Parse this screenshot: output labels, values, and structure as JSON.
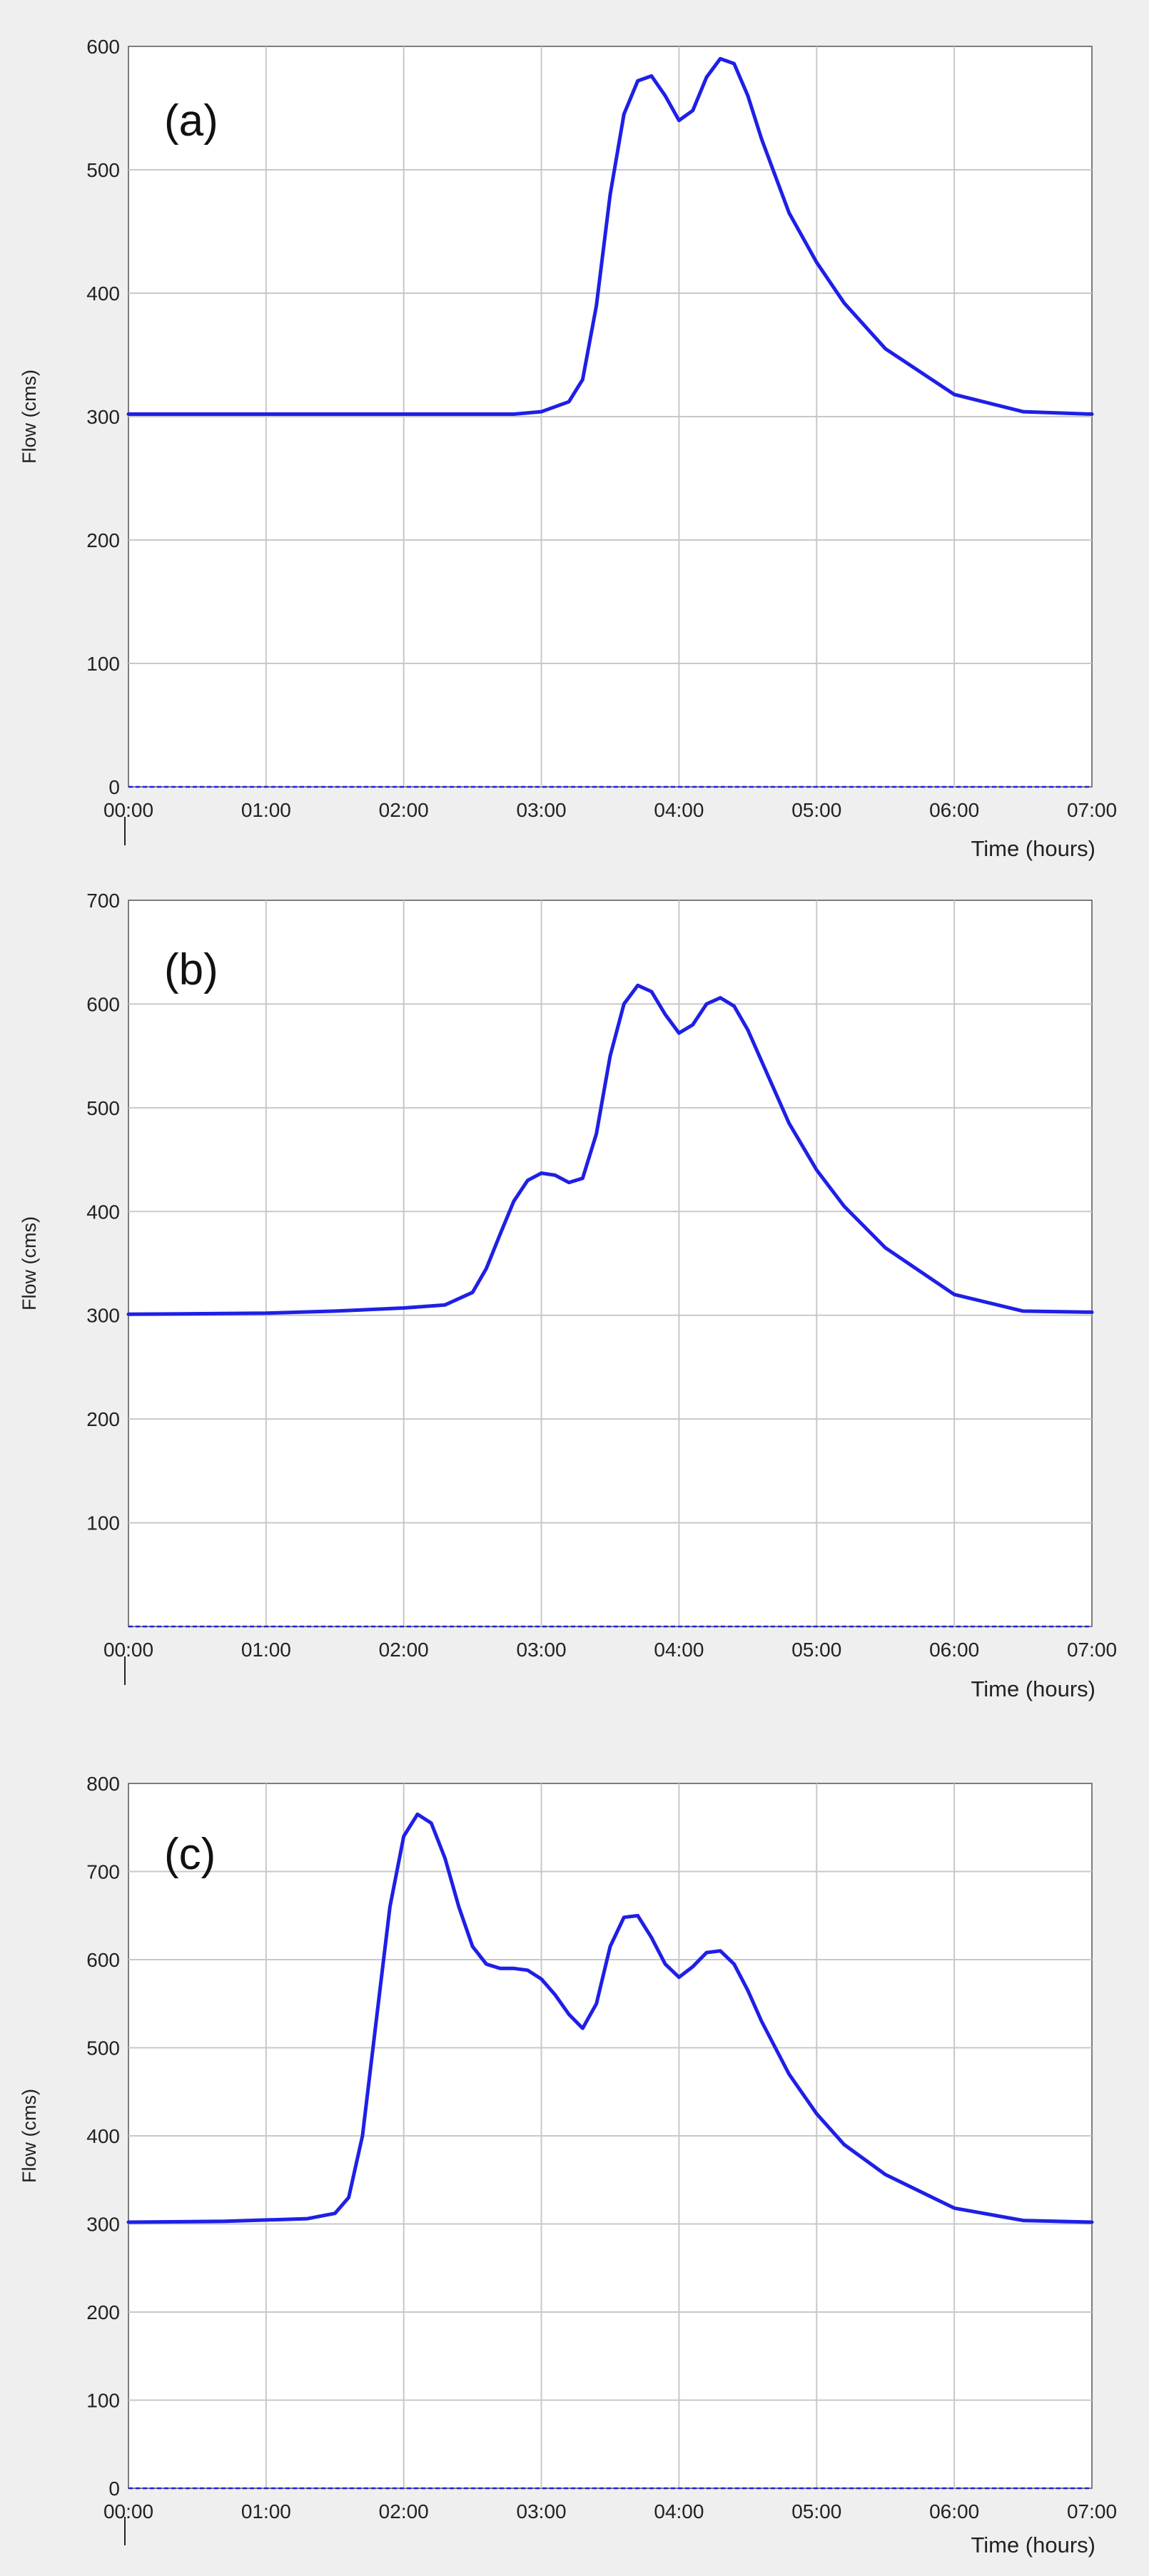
{
  "colors": {
    "series": "#1f1fe6",
    "grid": "#c8c8c8",
    "panel_bg": "#efefef"
  },
  "chart_data": [
    {
      "type": "line",
      "panel_label": "(a)",
      "ylabel": "Flow (cms)",
      "xlabel": "Time (hours)",
      "xlim": [
        0,
        7
      ],
      "ylim": [
        0,
        600
      ],
      "x_tick_labels": [
        "00:00",
        "01:00",
        "02:00",
        "03:00",
        "04:00",
        "05:00",
        "06:00",
        "07:00"
      ],
      "y_tick_labels": [
        "0",
        "100",
        "200",
        "300",
        "400",
        "500",
        "600"
      ],
      "grid": true,
      "series": [
        {
          "x": [
            0,
            1,
            2,
            2.8,
            3.0,
            3.2,
            3.3,
            3.4,
            3.5,
            3.6,
            3.7,
            3.8,
            3.9,
            4.0,
            4.1,
            4.2,
            4.3,
            4.4,
            4.5,
            4.6,
            4.8,
            5.0,
            5.2,
            5.5,
            6.0,
            6.5,
            7.0
          ],
          "y": [
            302,
            302,
            302,
            302,
            304,
            312,
            330,
            390,
            480,
            545,
            572,
            576,
            560,
            540,
            548,
            575,
            590,
            586,
            560,
            525,
            465,
            425,
            392,
            355,
            318,
            304,
            302
          ]
        }
      ]
    },
    {
      "type": "line",
      "panel_label": "(b)",
      "ylabel": "Flow (cms)",
      "xlabel": "Time (hours)",
      "xlim": [
        0,
        7
      ],
      "ylim": [
        0,
        700
      ],
      "x_tick_labels": [
        "00:00",
        "01:00",
        "02:00",
        "03:00",
        "04:00",
        "05:00",
        "06:00",
        "07:00"
      ],
      "y_tick_labels": [
        "100",
        "200",
        "300",
        "400",
        "500",
        "600",
        "700"
      ],
      "grid": true,
      "series": [
        {
          "x": [
            0,
            1,
            1.5,
            2.0,
            2.3,
            2.5,
            2.6,
            2.7,
            2.8,
            2.9,
            3.0,
            3.1,
            3.2,
            3.3,
            3.4,
            3.5,
            3.6,
            3.7,
            3.8,
            3.9,
            4.0,
            4.1,
            4.2,
            4.3,
            4.4,
            4.5,
            4.6,
            4.8,
            5.0,
            5.2,
            5.5,
            6.0,
            6.5,
            7.0
          ],
          "y": [
            301,
            302,
            304,
            307,
            310,
            322,
            345,
            378,
            410,
            430,
            437,
            435,
            428,
            432,
            475,
            550,
            600,
            618,
            612,
            590,
            572,
            580,
            600,
            606,
            598,
            575,
            545,
            485,
            440,
            405,
            365,
            320,
            304,
            303
          ]
        }
      ]
    },
    {
      "type": "line",
      "panel_label": "(c)",
      "ylabel": "Flow (cms)",
      "xlabel": "Time (hours)",
      "xlim": [
        0,
        7
      ],
      "ylim": [
        0,
        800
      ],
      "x_tick_labels": [
        "00:00",
        "01:00",
        "02:00",
        "03:00",
        "04:00",
        "05:00",
        "06:00",
        "07:00"
      ],
      "y_tick_labels": [
        "0",
        "100",
        "200",
        "300",
        "400",
        "500",
        "600",
        "700",
        "800"
      ],
      "grid": true,
      "series": [
        {
          "x": [
            0,
            0.7,
            1.3,
            1.5,
            1.6,
            1.7,
            1.8,
            1.9,
            2.0,
            2.1,
            2.2,
            2.3,
            2.4,
            2.5,
            2.6,
            2.7,
            2.8,
            2.9,
            3.0,
            3.1,
            3.2,
            3.3,
            3.4,
            3.5,
            3.6,
            3.7,
            3.8,
            3.9,
            4.0,
            4.1,
            4.2,
            4.3,
            4.4,
            4.5,
            4.6,
            4.8,
            5.0,
            5.2,
            5.5,
            6.0,
            6.5,
            7.0
          ],
          "y": [
            302,
            303,
            306,
            312,
            330,
            400,
            530,
            660,
            740,
            765,
            755,
            715,
            660,
            615,
            595,
            590,
            590,
            588,
            578,
            560,
            538,
            522,
            550,
            615,
            648,
            650,
            625,
            595,
            580,
            592,
            608,
            610,
            595,
            565,
            530,
            470,
            425,
            390,
            356,
            318,
            304,
            302
          ]
        }
      ]
    }
  ]
}
